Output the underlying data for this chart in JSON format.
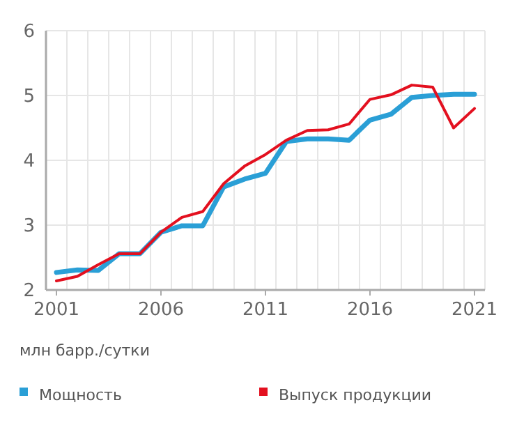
{
  "chart_data": {
    "type": "line",
    "x": [
      2001,
      2002,
      2003,
      2004,
      2005,
      2006,
      2007,
      2008,
      2009,
      2010,
      2011,
      2012,
      2013,
      2014,
      2015,
      2016,
      2017,
      2018,
      2019,
      2020,
      2021
    ],
    "series": [
      {
        "name": "Мощность",
        "color": "#2a9fd6",
        "values": [
          2.27,
          2.31,
          2.3,
          2.56,
          2.56,
          2.89,
          2.99,
          2.99,
          3.59,
          3.71,
          3.8,
          4.29,
          4.33,
          4.33,
          4.31,
          4.62,
          4.71,
          4.97,
          5.0,
          5.02,
          5.02
        ]
      },
      {
        "name": "Выпуск продукции",
        "color": "#e3101f",
        "values": [
          2.14,
          2.21,
          2.39,
          2.56,
          2.56,
          2.89,
          3.12,
          3.21,
          3.64,
          3.91,
          4.09,
          4.31,
          4.46,
          4.47,
          4.56,
          4.94,
          5.01,
          5.16,
          5.13,
          4.5,
          4.8
        ]
      }
    ],
    "ylabel": "млн барр./сутки",
    "xlim": [
      2000.5,
      2021.5
    ],
    "xticks": [
      2001,
      2006,
      2011,
      2016,
      2021
    ],
    "ylim": [
      2,
      6
    ],
    "yticks": [
      2,
      3,
      4,
      5,
      6
    ],
    "grid": true,
    "legend": "bottom"
  }
}
